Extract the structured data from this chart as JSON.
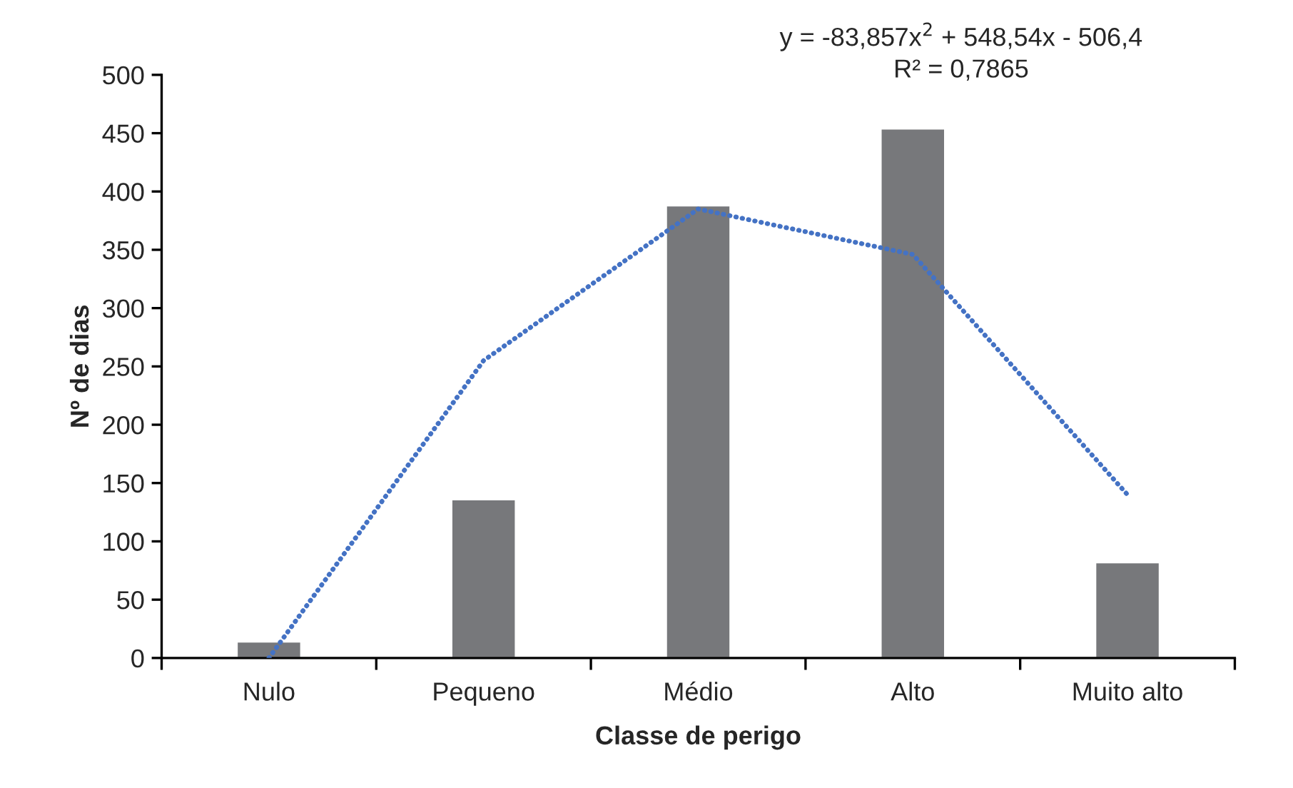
{
  "chart_data": {
    "type": "bar",
    "xlabel": "Classe de perigo",
    "ylabel": "Nº de dias",
    "categories": [
      "Nulo",
      "Pequeno",
      "Médio",
      "Alto",
      "Muito alto"
    ],
    "series": [
      {
        "color": "#77787b",
        "values": [
          14,
          136,
          388,
          454,
          82
        ]
      },
      {
        "type": "line",
        "color": "#4472c4",
        "line_style": "dotted",
        "values": [
          0,
          255,
          385,
          346,
          140
        ]
      }
    ],
    "ylim": [
      0,
      500
    ],
    "yticks": [
      0,
      50,
      100,
      150,
      200,
      250,
      300,
      350,
      400,
      450,
      500
    ],
    "grid": false,
    "annotations": [
      "y = -83,857x$^{2}$ + 548,54x - 506,4",
      "R² = 0,7865"
    ]
  }
}
